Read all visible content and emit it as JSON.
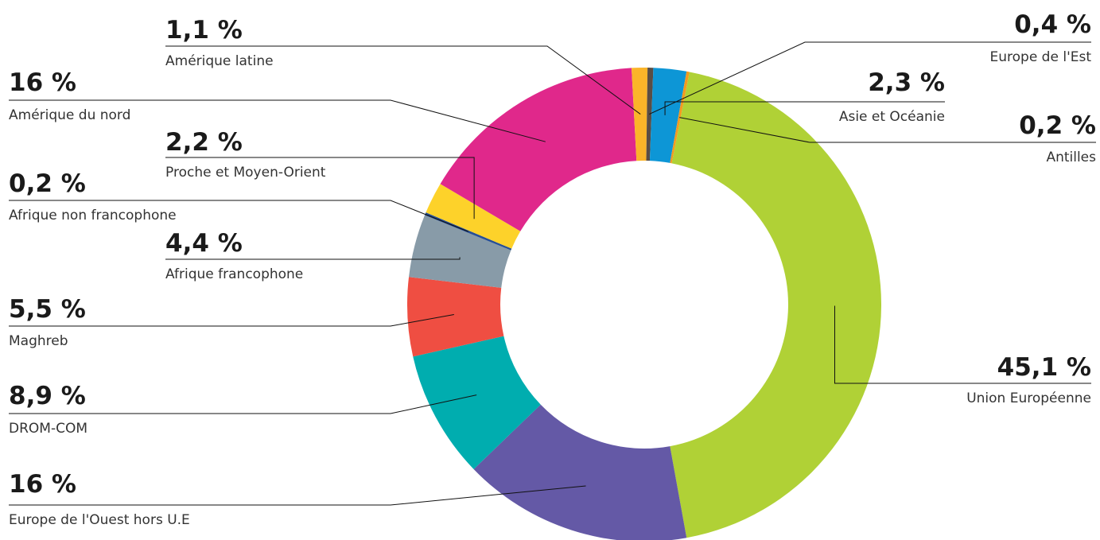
{
  "chart_data": {
    "type": "pie",
    "variant": "donut",
    "title": "",
    "slices": [
      {
        "label": "Union Européenne",
        "value": 45.1,
        "display": "45,1 %",
        "color": "#b0d136"
      },
      {
        "label": "Europe de l'Ouest hors U.E",
        "value": 16,
        "display": "16 %",
        "color": "#6459a6"
      },
      {
        "label": "DROM-COM",
        "value": 8.9,
        "display": "8,9 %",
        "color": "#00adaf"
      },
      {
        "label": "Maghreb",
        "value": 5.5,
        "display": "5,5 %",
        "color": "#ef4e42"
      },
      {
        "label": "Afrique francophone",
        "value": 4.4,
        "display": "4,4 %",
        "color": "#889ba8"
      },
      {
        "label": "Afrique non francophone",
        "value": 0.2,
        "display": "0,2 %",
        "color": "#274f95"
      },
      {
        "label": "Proche et Moyen-Orient",
        "value": 2.2,
        "display": "2,2 %",
        "color": "#fdd22a"
      },
      {
        "label": "Amérique du nord",
        "value": 16,
        "display": "16 %",
        "color": "#e0288b"
      },
      {
        "label": "Amérique latine",
        "value": 1.1,
        "display": "1,1 %",
        "color": "#fbb429"
      },
      {
        "label": "Europe de l'Est",
        "value": 0.4,
        "display": "0,4 %",
        "color": "#5a4d45"
      },
      {
        "label": "Asie et Océanie",
        "value": 2.3,
        "display": "2,3 %",
        "color": "#0d96d6"
      },
      {
        "label": "Antilles",
        "value": 0.2,
        "display": "0,2 %",
        "color": "#f39a20"
      }
    ]
  }
}
